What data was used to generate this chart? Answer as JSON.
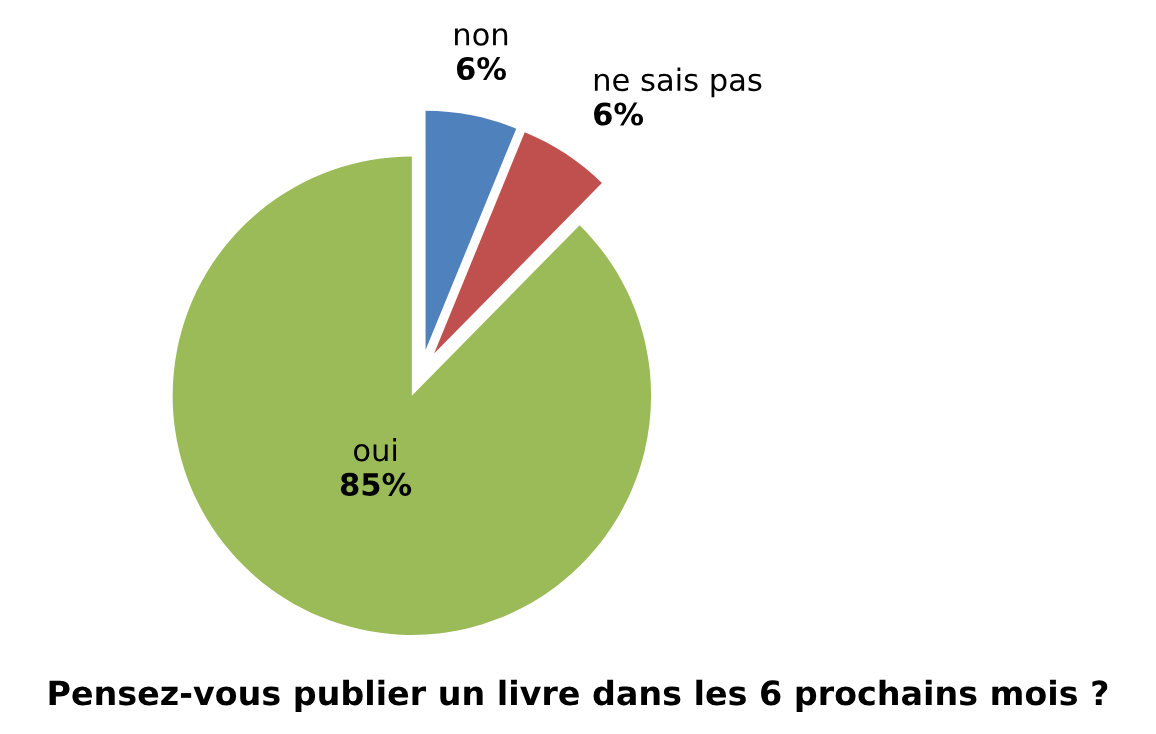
{
  "chart_data": {
    "type": "pie",
    "title": "Pensez-vous publier un livre dans les 6 prochains mois ?",
    "categories": [
      "non",
      "ne sais pas",
      "oui"
    ],
    "values": [
      6,
      6,
      85
    ],
    "value_labels": [
      "6%",
      "6%",
      "85%"
    ],
    "colors": [
      "#4f81bd",
      "#c0504d",
      "#9bbb59"
    ],
    "legend": false
  }
}
